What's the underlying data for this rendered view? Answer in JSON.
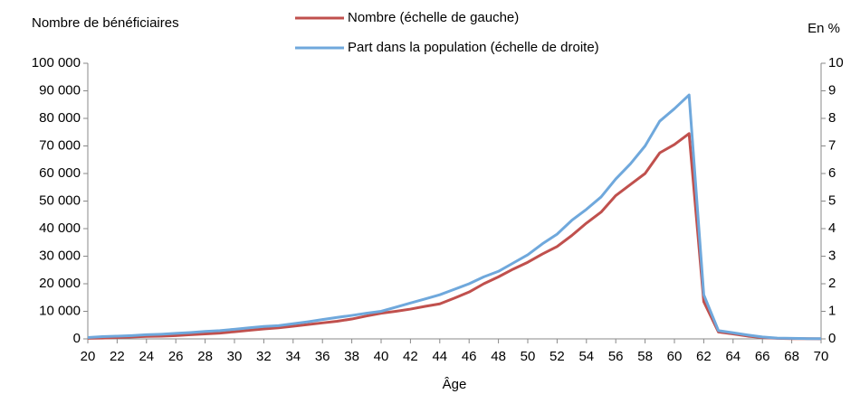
{
  "chart_data": {
    "type": "line",
    "ylabel": "Nombre de bénéficiaires",
    "y2label": "En %",
    "xlabel": "Âge",
    "x": [
      20,
      21,
      22,
      23,
      24,
      25,
      26,
      27,
      28,
      29,
      30,
      31,
      32,
      33,
      34,
      35,
      36,
      37,
      38,
      39,
      40,
      41,
      42,
      43,
      44,
      45,
      46,
      47,
      48,
      49,
      50,
      51,
      52,
      53,
      54,
      55,
      56,
      57,
      58,
      59,
      60,
      61,
      62,
      63,
      64,
      65,
      66,
      67,
      68,
      69,
      70
    ],
    "xlim": [
      20,
      70
    ],
    "xticks": [
      20,
      22,
      24,
      26,
      28,
      30,
      32,
      34,
      36,
      38,
      40,
      42,
      44,
      46,
      48,
      50,
      52,
      54,
      56,
      58,
      60,
      62,
      64,
      66,
      68,
      70
    ],
    "ylim": [
      0,
      100000
    ],
    "yticks": [
      0,
      {
        "value": 10000,
        "label": "10 000"
      },
      {
        "value": 20000,
        "label": "20 000"
      },
      {
        "value": 30000,
        "label": "30 000"
      },
      {
        "value": 40000,
        "label": "40 000"
      },
      {
        "value": 50000,
        "label": "50 000"
      },
      {
        "value": 60000,
        "label": "60 000"
      },
      {
        "value": 70000,
        "label": "70 000"
      },
      {
        "value": 80000,
        "label": "80 000"
      },
      {
        "value": 90000,
        "label": "90 000"
      },
      {
        "value": 100000,
        "label": "100 000"
      }
    ],
    "y2lim": [
      0,
      10
    ],
    "y2ticks": [
      0,
      1,
      2,
      3,
      4,
      5,
      6,
      7,
      8,
      9,
      10
    ],
    "series": [
      {
        "name": "Nombre (échelle de gauche)",
        "color": "#c0504d",
        "values": [
          200,
          300,
          500,
          700,
          900,
          1000,
          1200,
          1500,
          1800,
          2100,
          2600,
          3100,
          3600,
          4000,
          4600,
          5200,
          5800,
          6400,
          7200,
          8300,
          9300,
          10000,
          10800,
          11800,
          12700,
          14800,
          17000,
          20000,
          22500,
          25300,
          27800,
          30800,
          33500,
          37500,
          42000,
          46000,
          52000,
          56000,
          60000,
          67500,
          70500,
          74500,
          13500,
          2500,
          1800,
          1000,
          500,
          200,
          100,
          100,
          50
        ]
      },
      {
        "name": "Part dans la population (échelle de droite)",
        "color": "#6fa8dc",
        "axis": "y2",
        "values": [
          0.05,
          0.08,
          0.1,
          0.12,
          0.15,
          0.17,
          0.2,
          0.23,
          0.27,
          0.3,
          0.35,
          0.4,
          0.45,
          0.48,
          0.55,
          0.62,
          0.7,
          0.78,
          0.85,
          0.93,
          1.0,
          1.15,
          1.3,
          1.45,
          1.6,
          1.8,
          2.0,
          2.25,
          2.45,
          2.75,
          3.05,
          3.45,
          3.8,
          4.3,
          4.7,
          5.15,
          5.8,
          6.35,
          7.0,
          7.9,
          8.35,
          8.85,
          1.6,
          0.3,
          0.22,
          0.14,
          0.07,
          0.03,
          0.02,
          0.01,
          0.01
        ]
      }
    ]
  }
}
